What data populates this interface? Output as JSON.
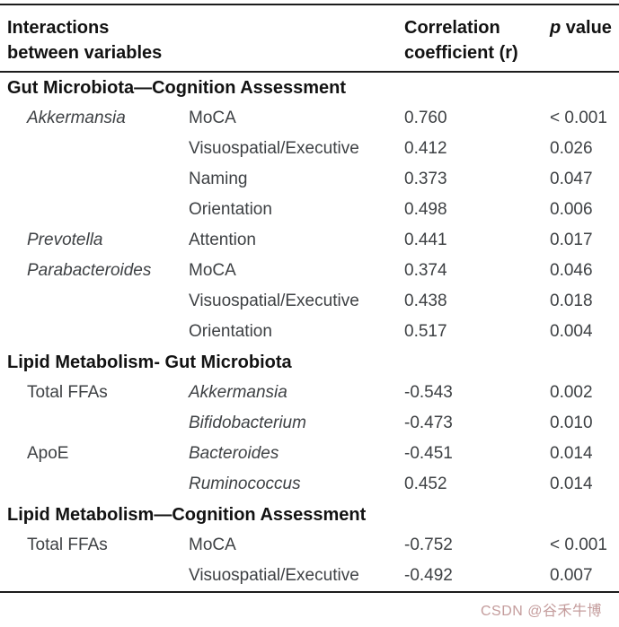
{
  "header": {
    "col1": [
      "Interactions",
      "between variables"
    ],
    "col3": [
      "Correlation",
      "coefficient (r)"
    ],
    "col4_p": "p",
    "col4_value": "value"
  },
  "sections": [
    {
      "title": "Gut Microbiota—Cognition Assessment",
      "rows": [
        {
          "c1": "Akkermansia",
          "c2": "MoCA",
          "r": "0.760",
          "p": "< 0.001"
        },
        {
          "c1": "",
          "c2": "Visuospatial/Executive",
          "r": "0.412",
          "p": "0.026"
        },
        {
          "c1": "",
          "c2": "Naming",
          "r": "0.373",
          "p": "0.047"
        },
        {
          "c1": "",
          "c2": "Orientation",
          "r": "0.498",
          "p": "0.006"
        },
        {
          "c1": "Prevotella",
          "c2": "Attention",
          "r": "0.441",
          "p": "0.017"
        },
        {
          "c1": "Parabacteroides",
          "c2": "MoCA",
          "r": "0.374",
          "p": "0.046"
        },
        {
          "c1": "",
          "c2": "Visuospatial/Executive",
          "r": "0.438",
          "p": "0.018"
        },
        {
          "c1": "",
          "c2": "Orientation",
          "r": "0.517",
          "p": "0.004"
        }
      ]
    },
    {
      "title": "Lipid Metabolism- Gut Microbiota",
      "rows": [
        {
          "c1": "Total FFAs",
          "c2": "Akkermansia",
          "r": "-0.543",
          "p": "0.002"
        },
        {
          "c1": "",
          "c2": "Bifidobacterium",
          "r": "-0.473",
          "p": "0.010"
        },
        {
          "c1": "ApoE",
          "c2": "Bacteroides",
          "r": "-0.451",
          "p": "0.014"
        },
        {
          "c1": "",
          "c2": "Ruminococcus",
          "r": "0.452",
          "p": "0.014"
        }
      ]
    },
    {
      "title": "Lipid Metabolism—Cognition Assessment",
      "rows": [
        {
          "c1": "Total FFAs",
          "c2": "MoCA",
          "r": "-0.752",
          "p": "< 0.001"
        },
        {
          "c1": "",
          "c2": "Visuospatial/Executive",
          "r": "-0.492",
          "p": "0.007"
        }
      ]
    }
  ],
  "watermark": {
    "text": "CSDN @谷禾牛博"
  }
}
